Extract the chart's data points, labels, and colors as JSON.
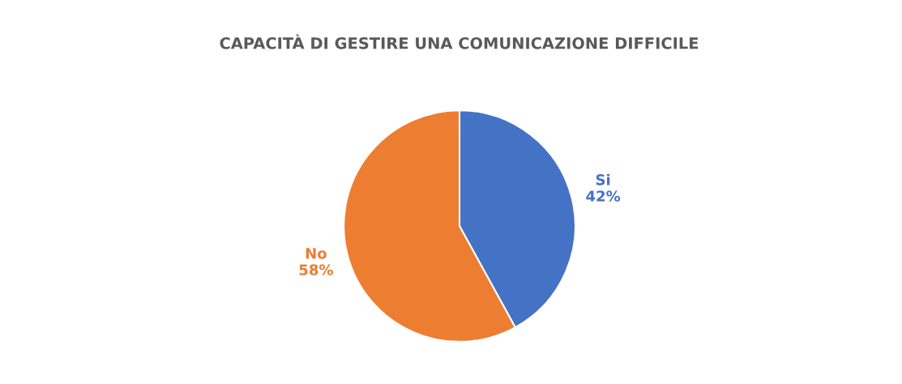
{
  "chart_data": {
    "type": "pie",
    "title": "CAPACITÀ DI GESTIRE UNA COMUNICAZIONE DIFFICILE",
    "categories": [
      "Si",
      "No"
    ],
    "values": [
      42,
      58
    ],
    "value_labels": [
      "42%",
      "58%"
    ],
    "colors": [
      "#4472c4",
      "#ed7d31"
    ],
    "legend": false
  }
}
